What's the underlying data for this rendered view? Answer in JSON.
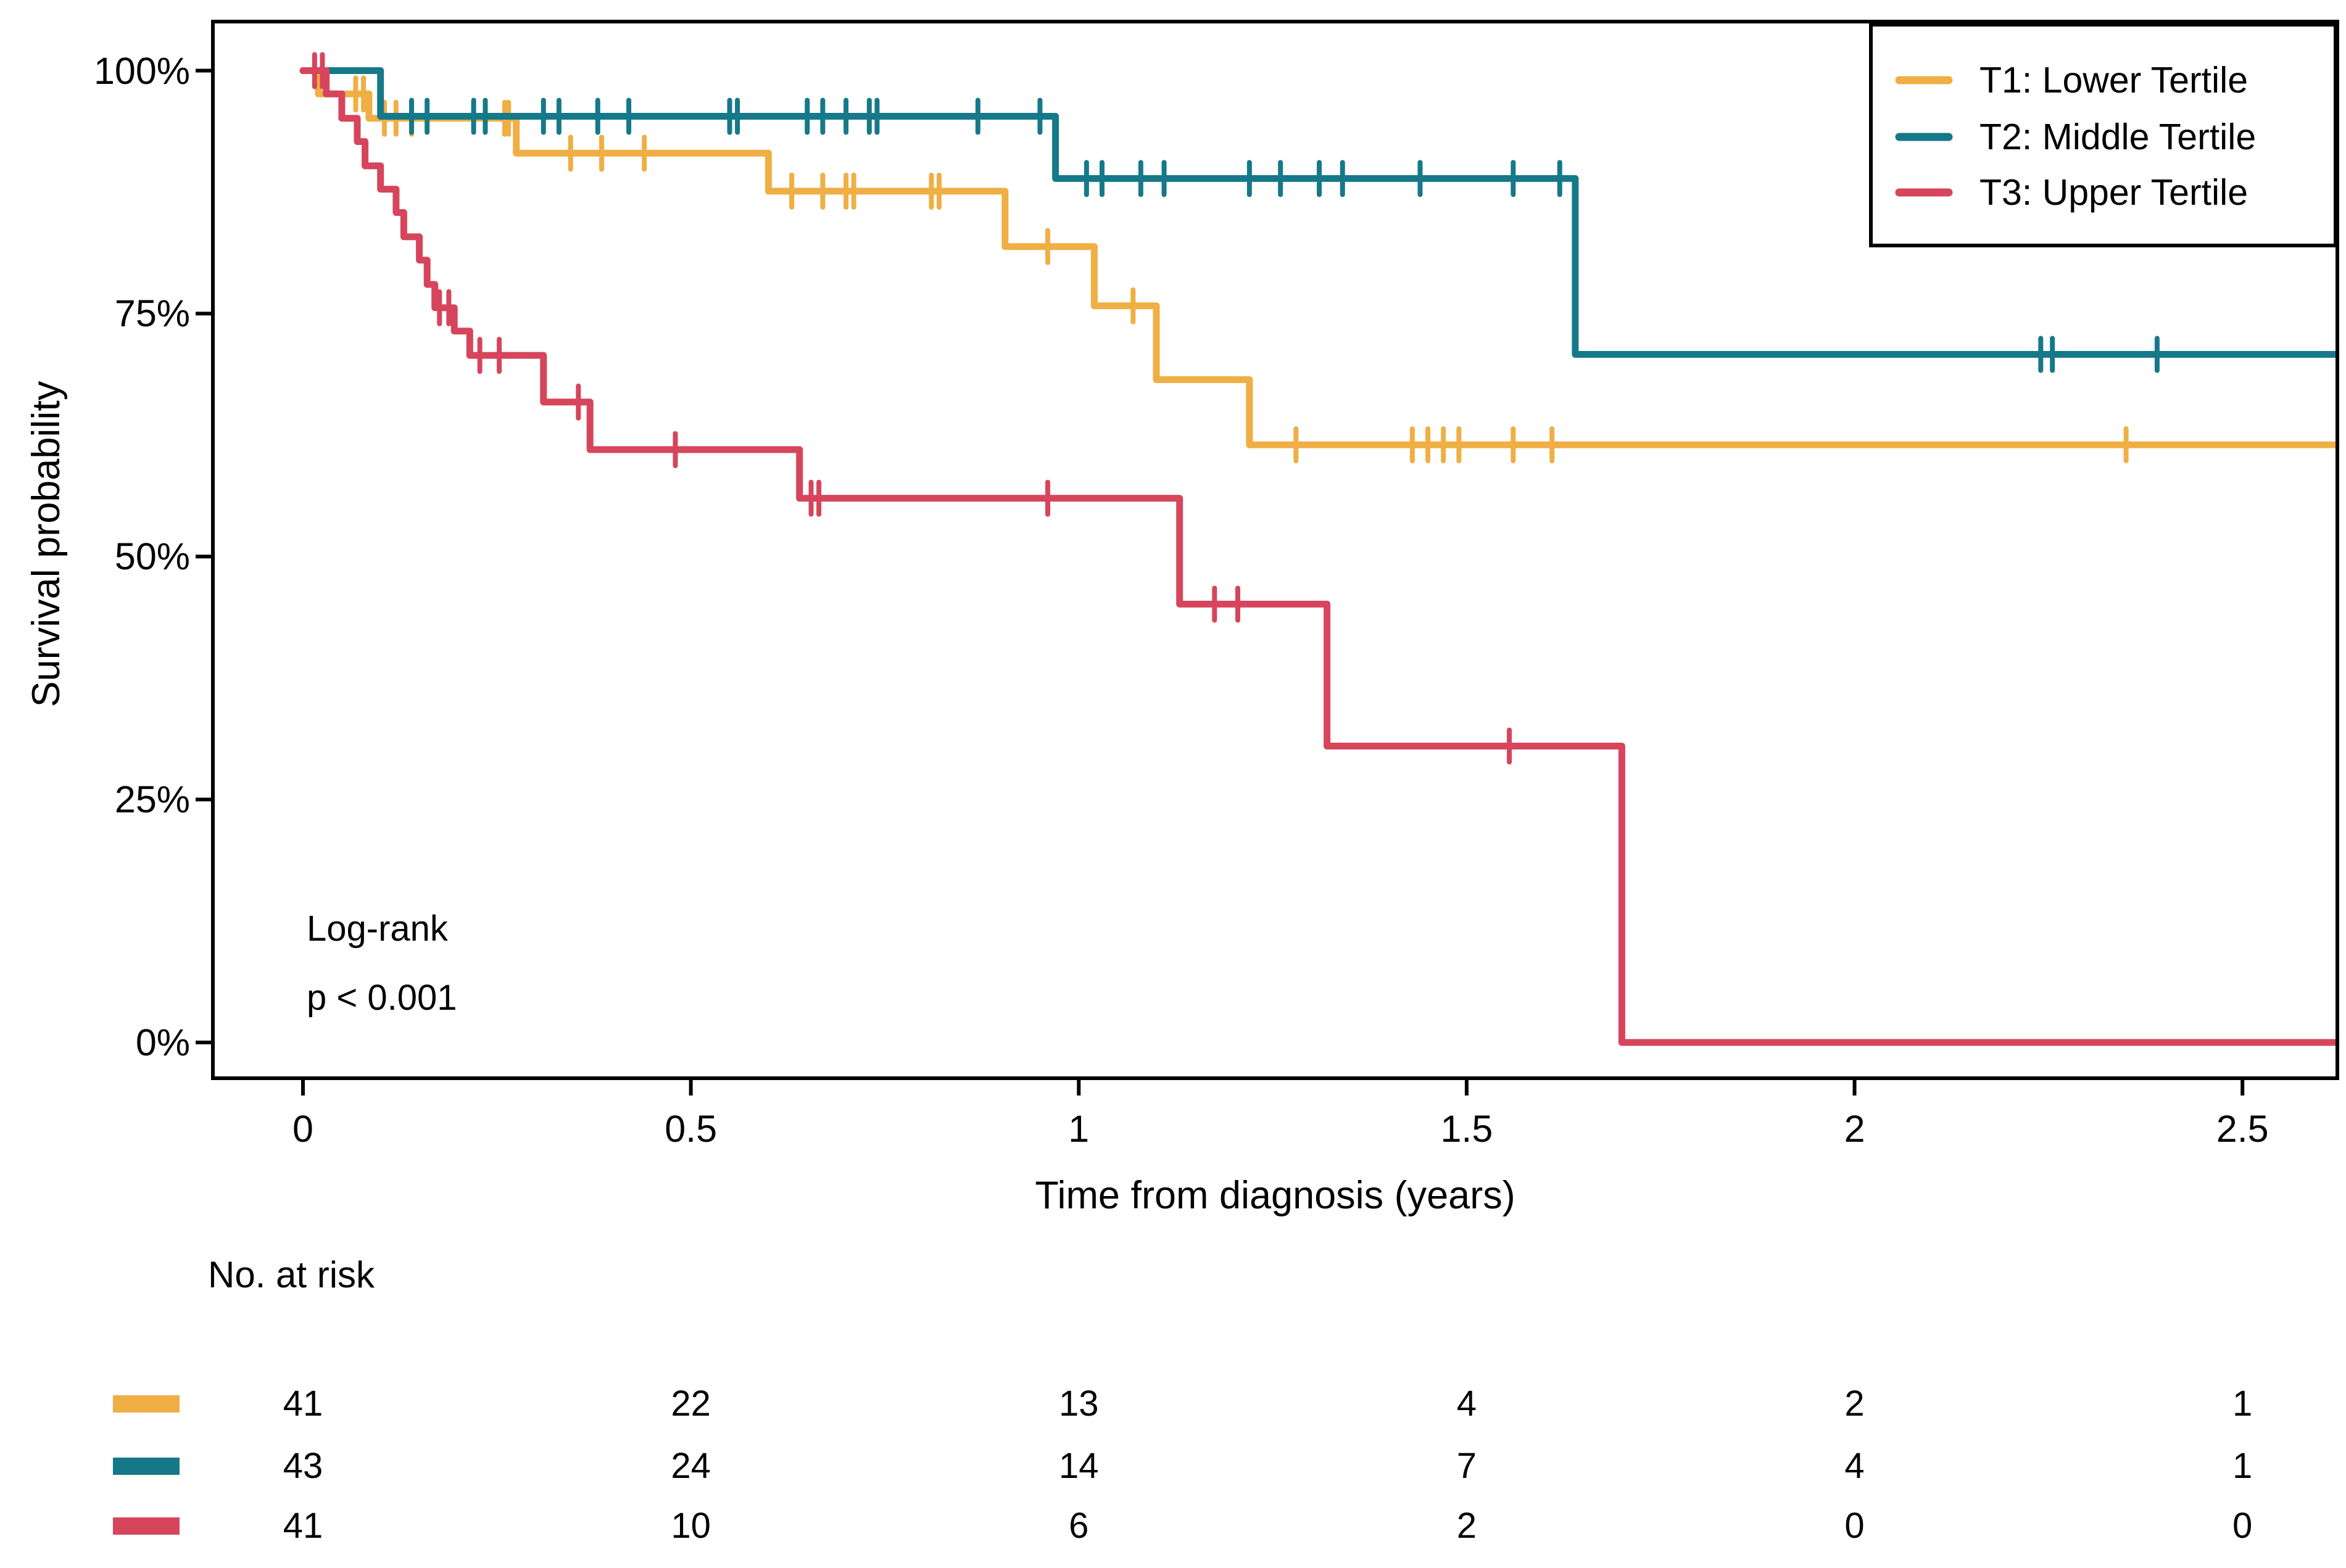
{
  "figure": {
    "type": "kaplan-meier-survival-plot",
    "background": "#ffffff",
    "text_color": "#000000",
    "axis_color": "#000000"
  },
  "chart_data": {
    "type": "line",
    "subtype": "step-survival-curves",
    "title": "",
    "xlabel": "Time from diagnosis (years)",
    "ylabel": "Survival probability",
    "xlim": [
      0,
      2.62
    ],
    "ylim": [
      0,
      100
    ],
    "grid": "off",
    "legend_position": "top-right",
    "x_ticks": [
      {
        "value": 0,
        "label": "0"
      },
      {
        "value": 0.5,
        "label": "0.5"
      },
      {
        "value": 1,
        "label": "1"
      },
      {
        "value": 1.5,
        "label": "1.5"
      },
      {
        "value": 2,
        "label": "2"
      },
      {
        "value": 2.5,
        "label": "2.5"
      }
    ],
    "y_ticks": [
      {
        "value": 0,
        "label": "0%"
      },
      {
        "value": 25,
        "label": "25%"
      },
      {
        "value": 50,
        "label": "50%"
      },
      {
        "value": 75,
        "label": "75%"
      },
      {
        "value": 100,
        "label": "100%"
      }
    ],
    "annotation": {
      "line1": "Log-rank",
      "line2": "p < 0.001"
    },
    "series": [
      {
        "id": "T1",
        "label": "T1: Lower Tertile",
        "color": "#EFAF44",
        "steps": [
          [
            0,
            100
          ],
          [
            0.02,
            97.6
          ],
          [
            0.085,
            95.1
          ],
          [
            0.275,
            91.5
          ],
          [
            0.6,
            87.6
          ],
          [
            0.905,
            81.9
          ],
          [
            1.02,
            75.8
          ],
          [
            1.1,
            68.2
          ],
          [
            1.22,
            61.5
          ],
          [
            2.62,
            61.5
          ]
        ],
        "censors": [
          [
            0.068,
            97.6
          ],
          [
            0.078,
            97.6
          ],
          [
            0.105,
            95.1
          ],
          [
            0.12,
            95.1
          ],
          [
            0.14,
            95.1
          ],
          [
            0.26,
            95.1
          ],
          [
            0.265,
            95.1
          ],
          [
            0.345,
            91.5
          ],
          [
            0.385,
            91.5
          ],
          [
            0.44,
            91.5
          ],
          [
            0.63,
            87.6
          ],
          [
            0.67,
            87.6
          ],
          [
            0.7,
            87.6
          ],
          [
            0.71,
            87.6
          ],
          [
            0.81,
            87.6
          ],
          [
            0.82,
            87.6
          ],
          [
            0.96,
            81.9
          ],
          [
            1.07,
            75.8
          ],
          [
            1.28,
            61.5
          ],
          [
            1.43,
            61.5
          ],
          [
            1.45,
            61.5
          ],
          [
            1.47,
            61.5
          ],
          [
            1.49,
            61.5
          ],
          [
            1.56,
            61.5
          ],
          [
            1.61,
            61.5
          ],
          [
            2.35,
            61.5
          ]
        ]
      },
      {
        "id": "T2",
        "label": "T2: Middle Tertile",
        "color": "#15798A",
        "steps": [
          [
            0,
            100
          ],
          [
            0.1,
            95.3
          ],
          [
            0.97,
            88.9
          ],
          [
            1.64,
            70.8
          ],
          [
            2.62,
            70.8
          ]
        ],
        "censors": [
          [
            0.14,
            95.3
          ],
          [
            0.16,
            95.3
          ],
          [
            0.22,
            95.3
          ],
          [
            0.235,
            95.3
          ],
          [
            0.31,
            95.3
          ],
          [
            0.33,
            95.3
          ],
          [
            0.38,
            95.3
          ],
          [
            0.42,
            95.3
          ],
          [
            0.55,
            95.3
          ],
          [
            0.56,
            95.3
          ],
          [
            0.65,
            95.3
          ],
          [
            0.67,
            95.3
          ],
          [
            0.7,
            95.3
          ],
          [
            0.73,
            95.3
          ],
          [
            0.74,
            95.3
          ],
          [
            0.87,
            95.3
          ],
          [
            0.95,
            95.3
          ],
          [
            1.01,
            88.9
          ],
          [
            1.03,
            88.9
          ],
          [
            1.08,
            88.9
          ],
          [
            1.11,
            88.9
          ],
          [
            1.22,
            88.9
          ],
          [
            1.26,
            88.9
          ],
          [
            1.31,
            88.9
          ],
          [
            1.34,
            88.9
          ],
          [
            1.44,
            88.9
          ],
          [
            1.56,
            88.9
          ],
          [
            1.62,
            88.9
          ],
          [
            2.24,
            70.8
          ],
          [
            2.255,
            70.8
          ],
          [
            2.39,
            70.8
          ]
        ]
      },
      {
        "id": "T3",
        "label": "T3: Upper Tertile",
        "color": "#D6455C",
        "steps": [
          [
            0,
            100
          ],
          [
            0.03,
            97.6
          ],
          [
            0.05,
            95.1
          ],
          [
            0.07,
            92.7
          ],
          [
            0.08,
            90.2
          ],
          [
            0.1,
            87.8
          ],
          [
            0.12,
            85.4
          ],
          [
            0.13,
            82.9
          ],
          [
            0.15,
            80.5
          ],
          [
            0.16,
            78.0
          ],
          [
            0.17,
            75.6
          ],
          [
            0.195,
            73.2
          ],
          [
            0.215,
            70.7
          ],
          [
            0.31,
            65.9
          ],
          [
            0.37,
            61.0
          ],
          [
            0.64,
            56.0
          ],
          [
            1.13,
            45.1
          ],
          [
            1.32,
            30.5
          ],
          [
            1.7,
            0
          ],
          [
            2.62,
            0
          ]
        ],
        "censors": [
          [
            0.015,
            100
          ],
          [
            0.025,
            100
          ],
          [
            0.176,
            75.6
          ],
          [
            0.188,
            75.6
          ],
          [
            0.228,
            70.7
          ],
          [
            0.253,
            70.7
          ],
          [
            0.355,
            65.9
          ],
          [
            0.48,
            61.0
          ],
          [
            0.655,
            56.0
          ],
          [
            0.665,
            56.0
          ],
          [
            0.96,
            56.0
          ],
          [
            1.175,
            45.1
          ],
          [
            1.205,
            45.1
          ],
          [
            1.555,
            30.5
          ]
        ]
      }
    ],
    "risk_table": {
      "title": "No. at risk",
      "times": [
        0,
        0.5,
        1,
        1.5,
        2,
        2.5
      ],
      "rows": [
        {
          "series": "T1",
          "color": "#EFAF44",
          "values": [
            41,
            22,
            13,
            4,
            2,
            1
          ]
        },
        {
          "series": "T2",
          "color": "#15798A",
          "values": [
            43,
            24,
            14,
            7,
            4,
            1
          ]
        },
        {
          "series": "T3",
          "color": "#D6455C",
          "values": [
            41,
            10,
            6,
            2,
            0,
            0
          ]
        }
      ]
    }
  }
}
